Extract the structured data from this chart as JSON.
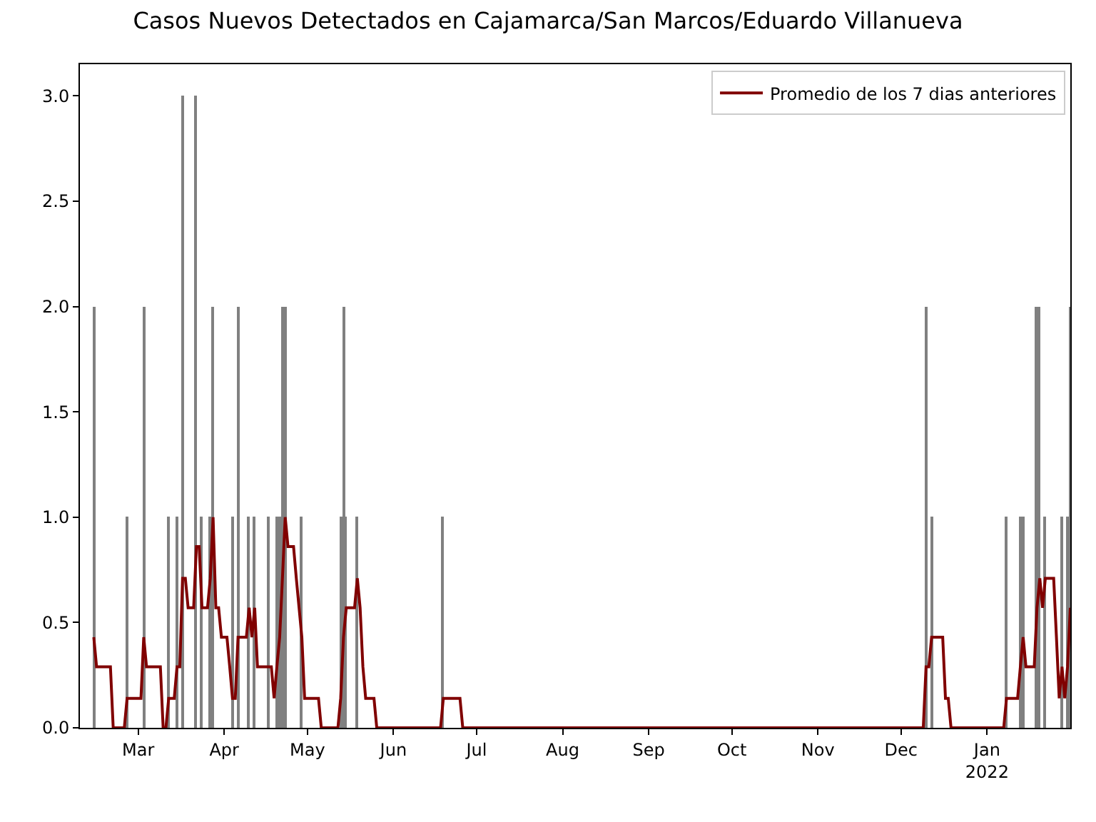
{
  "chart_data": {
    "type": "bar",
    "title": "Casos Nuevos Detectados en Cajamarca/San Marcos/Eduardo Villanueva",
    "series": [
      {
        "color": "#808080",
        "x": [
          "2021-02-13",
          "2021-02-25",
          "2021-03-03",
          "2021-03-12",
          "2021-03-15",
          "2021-03-17",
          "2021-03-22",
          "2021-03-24",
          "2021-03-27",
          "2021-03-28",
          "2021-04-04",
          "2021-04-06",
          "2021-04-10",
          "2021-04-12",
          "2021-04-17",
          "2021-04-20",
          "2021-04-21",
          "2021-04-22",
          "2021-04-23",
          "2021-04-29",
          "2021-05-13",
          "2021-05-14",
          "2021-05-15",
          "2021-05-19",
          "2021-06-19",
          "2021-12-10",
          "2021-12-12",
          "2022-01-08",
          "2022-01-13",
          "2022-01-14",
          "2022-01-19",
          "2022-01-20",
          "2022-01-22",
          "2022-01-28",
          "2022-01-30",
          "2022-01-31"
        ],
        "values": [
          2,
          1,
          2,
          1,
          1,
          3,
          3,
          1,
          1,
          2,
          1,
          2,
          1,
          1,
          1,
          1,
          1,
          2,
          2,
          1,
          1,
          2,
          1,
          1,
          1,
          2,
          1,
          1,
          1,
          1,
          2,
          2,
          1,
          1,
          1,
          2
        ]
      },
      {
        "type": "line",
        "name": "Promedio de los 7 dias anteriores",
        "color": "#800000",
        "x": [
          "2021-02-13",
          "2021-02-14",
          "2021-02-19",
          "2021-02-20",
          "2021-02-24",
          "2021-02-25",
          "2021-03-02",
          "2021-03-03",
          "2021-03-04",
          "2021-03-09",
          "2021-03-10",
          "2021-03-11",
          "2021-03-12",
          "2021-03-14",
          "2021-03-15",
          "2021-03-16",
          "2021-03-17",
          "2021-03-18",
          "2021-03-19",
          "2021-03-21",
          "2021-03-22",
          "2021-03-23",
          "2021-03-24",
          "2021-03-26",
          "2021-03-27",
          "2021-03-28",
          "2021-03-29",
          "2021-03-30",
          "2021-03-31",
          "2021-04-02",
          "2021-04-03",
          "2021-04-04",
          "2021-04-05",
          "2021-04-06",
          "2021-04-09",
          "2021-04-10",
          "2021-04-11",
          "2021-04-12",
          "2021-04-13",
          "2021-04-16",
          "2021-04-17",
          "2021-04-18",
          "2021-04-19",
          "2021-04-20",
          "2021-04-21",
          "2021-04-22",
          "2021-04-23",
          "2021-04-24",
          "2021-04-26",
          "2021-04-27",
          "2021-04-28",
          "2021-04-29",
          "2021-04-30",
          "2021-05-05",
          "2021-05-06",
          "2021-05-12",
          "2021-05-13",
          "2021-05-14",
          "2021-05-15",
          "2021-05-18",
          "2021-05-19",
          "2021-05-20",
          "2021-05-21",
          "2021-05-22",
          "2021-05-25",
          "2021-05-26",
          "2021-06-18",
          "2021-06-19",
          "2021-06-25",
          "2021-06-26",
          "2021-12-09",
          "2021-12-10",
          "2021-12-11",
          "2021-12-12",
          "2021-12-16",
          "2021-12-17",
          "2021-12-18",
          "2021-12-19",
          "2022-01-07",
          "2022-01-08",
          "2022-01-12",
          "2022-01-13",
          "2022-01-14",
          "2022-01-15",
          "2022-01-18",
          "2022-01-19",
          "2022-01-20",
          "2022-01-21",
          "2022-01-22",
          "2022-01-25",
          "2022-01-26",
          "2022-01-27",
          "2022-01-28",
          "2022-01-29",
          "2022-01-30",
          "2022-01-31"
        ],
        "values": [
          0.43,
          0.29,
          0.29,
          0,
          0,
          0.14,
          0.14,
          0.43,
          0.29,
          0.29,
          0,
          0,
          0.14,
          0.14,
          0.29,
          0.29,
          0.71,
          0.71,
          0.57,
          0.57,
          0.86,
          0.86,
          0.57,
          0.57,
          0.71,
          1.0,
          0.57,
          0.57,
          0.43,
          0.43,
          0.29,
          0.14,
          0.14,
          0.43,
          0.43,
          0.57,
          0.43,
          0.57,
          0.29,
          0.29,
          0.29,
          0.29,
          0.14,
          0.29,
          0.43,
          0.71,
          1.0,
          0.86,
          0.86,
          0.71,
          0.57,
          0.43,
          0.14,
          0.14,
          0,
          0,
          0.14,
          0.43,
          0.57,
          0.57,
          0.71,
          0.57,
          0.29,
          0.14,
          0.14,
          0,
          0,
          0.14,
          0.14,
          0,
          0,
          0.29,
          0.29,
          0.43,
          0.43,
          0.14,
          0.14,
          0,
          0,
          0.14,
          0.14,
          0.29,
          0.43,
          0.29,
          0.29,
          0.57,
          0.71,
          0.57,
          0.71,
          0.71,
          0.43,
          0.14,
          0.29,
          0.14,
          0.29,
          0.57
        ]
      }
    ],
    "xlim": [
      "2021-02-08",
      "2022-01-31"
    ],
    "xticks": [
      {
        "value": "2021-03-01",
        "label": "Mar"
      },
      {
        "value": "2021-04-01",
        "label": "Apr"
      },
      {
        "value": "2021-05-01",
        "label": "May"
      },
      {
        "value": "2021-06-01",
        "label": "Jun"
      },
      {
        "value": "2021-07-01",
        "label": "Jul"
      },
      {
        "value": "2021-08-01",
        "label": "Aug"
      },
      {
        "value": "2021-09-01",
        "label": "Sep"
      },
      {
        "value": "2021-10-01",
        "label": "Oct"
      },
      {
        "value": "2021-11-01",
        "label": "Nov"
      },
      {
        "value": "2021-12-01",
        "label": "Dec"
      },
      {
        "value": "2022-01-01",
        "label": "Jan\n2022"
      }
    ],
    "ylim": [
      0,
      3.15
    ],
    "yticks": [
      {
        "value": 0,
        "label": "0.0"
      },
      {
        "value": 0.5,
        "label": "0.5"
      },
      {
        "value": 1,
        "label": "1.0"
      },
      {
        "value": 1.5,
        "label": "1.5"
      },
      {
        "value": 2,
        "label": "2.0"
      },
      {
        "value": 2.5,
        "label": "2.5"
      },
      {
        "value": 3,
        "label": "3.0"
      }
    ],
    "grid": false,
    "legend": "top right",
    "line_style": "solid",
    "marker": "none"
  }
}
